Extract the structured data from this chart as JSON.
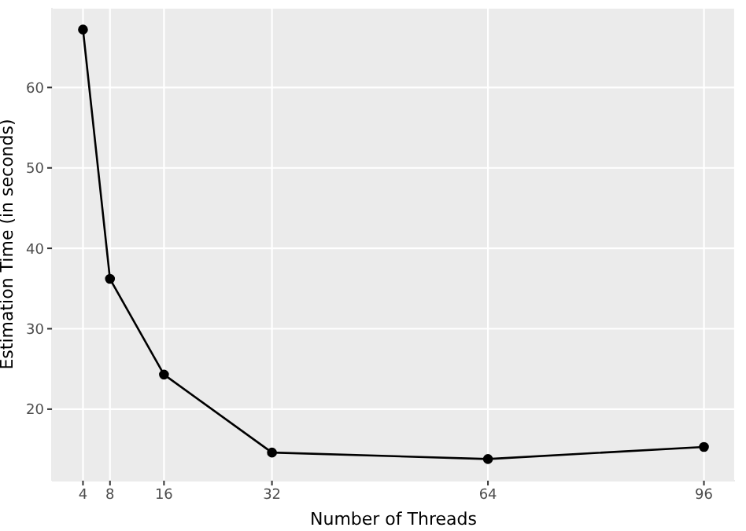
{
  "chart_data": {
    "type": "line",
    "xlabel": "Number of Threads",
    "ylabel": "Estimation Time (in seconds)",
    "x": [
      4,
      8,
      16,
      32,
      64,
      96
    ],
    "series": [
      {
        "color": "#000000",
        "values": [
          67.2,
          36.2,
          24.3,
          14.6,
          13.8,
          15.3
        ]
      }
    ],
    "xlim": [
      -0.6,
      100.6
    ],
    "xticks": [
      4,
      8,
      16,
      32,
      64,
      96
    ],
    "ylim": [
      11.1,
      69.9
    ],
    "yticks": [
      20,
      30,
      40,
      50,
      60
    ],
    "grid": true,
    "marker": "circle",
    "line_style": "solid"
  }
}
